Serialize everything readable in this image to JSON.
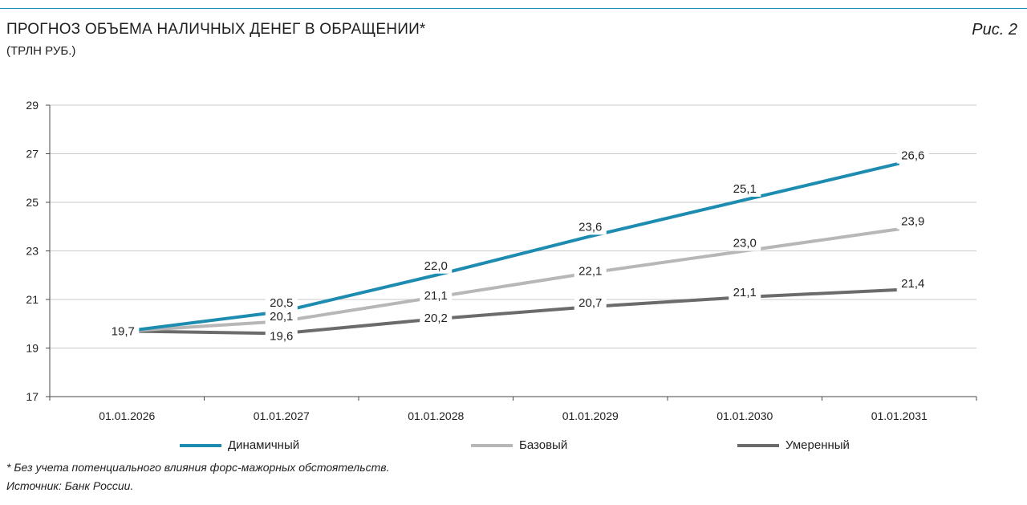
{
  "header": {
    "title": "ПРОГНОЗ ОБЪЕМА НАЛИЧНЫХ ДЕНЕГ В ОБРАЩЕНИИ*",
    "subtitle": "(ТРЛН РУБ.)",
    "figure_label": "Рис. 2"
  },
  "footer": {
    "footnote": "* Без учета потенциального влияния форс-мажорных обстоятельств.",
    "source": "Источник: Банк России."
  },
  "colors": {
    "accent_rule": "#1b8fb3",
    "grid": "#c9c9c9",
    "axis": "#4a4a4a"
  },
  "chart_data": {
    "type": "line",
    "title": "ПРОГНОЗ ОБЪЕМА НАЛИЧНЫХ ДЕНЕГ В ОБРАЩЕНИИ*",
    "subtitle": "(ТРЛН РУБ.)",
    "xlabel": "",
    "ylabel": "",
    "categories": [
      "01.01.2026",
      "01.01.2027",
      "01.01.2028",
      "01.01.2029",
      "01.01.2030",
      "01.01.2031"
    ],
    "ylim": [
      17,
      29
    ],
    "yticks": [
      17,
      19,
      21,
      23,
      25,
      27,
      29
    ],
    "grid": true,
    "legend_position": "bottom",
    "series": [
      {
        "name": "Динамичный",
        "color": "#1d8cb0",
        "values": [
          19.7,
          20.5,
          22.0,
          23.6,
          25.1,
          26.6
        ],
        "labels": [
          "",
          "20,5",
          "22,0",
          "23,6",
          "25,1",
          "26,6"
        ]
      },
      {
        "name": "Базовый",
        "color": "#b7b7b7",
        "values": [
          19.7,
          20.1,
          21.1,
          22.1,
          23.0,
          23.9
        ],
        "labels": [
          "",
          "20,1",
          "21,1",
          "22,1",
          "23,0",
          "23,9"
        ]
      },
      {
        "name": "Умеренный",
        "color": "#6b6b6b",
        "values": [
          19.7,
          19.6,
          20.2,
          20.7,
          21.1,
          21.4
        ],
        "labels": [
          "19,7",
          "19,6",
          "20,2",
          "20,7",
          "21,1",
          "21,4"
        ]
      }
    ]
  }
}
